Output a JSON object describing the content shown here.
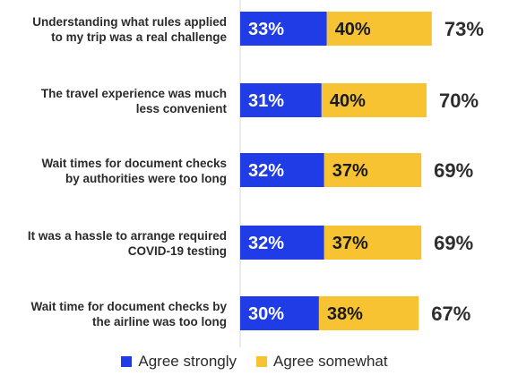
{
  "chart_data": {
    "type": "bar",
    "orientation": "horizontal",
    "stacked": true,
    "title": "",
    "xlabel": "",
    "ylabel": "",
    "xlim": [
      0,
      100
    ],
    "categories": [
      [
        "Understanding what rules applied",
        "to my trip was a real challenge"
      ],
      [
        "The travel experience was much",
        "less convenient"
      ],
      [
        "Wait times for document checks",
        "by authorities were too long"
      ],
      [
        "It was a hassle to arrange required",
        "COVID-19 testing"
      ],
      [
        "Wait time for document checks by",
        "the airline was too long"
      ]
    ],
    "series": [
      {
        "name": "Agree strongly",
        "color": "#1f3ce6",
        "label_color": "#ffffff",
        "values": [
          33,
          31,
          32,
          32,
          30
        ]
      },
      {
        "name": "Agree somewhat",
        "color": "#f8c332",
        "label_color": "#1a1a1a",
        "values": [
          40,
          40,
          37,
          37,
          38
        ]
      }
    ],
    "totals": [
      73,
      70,
      69,
      69,
      67
    ],
    "value_suffix": "%",
    "legend_position": "bottom",
    "grid": false
  }
}
